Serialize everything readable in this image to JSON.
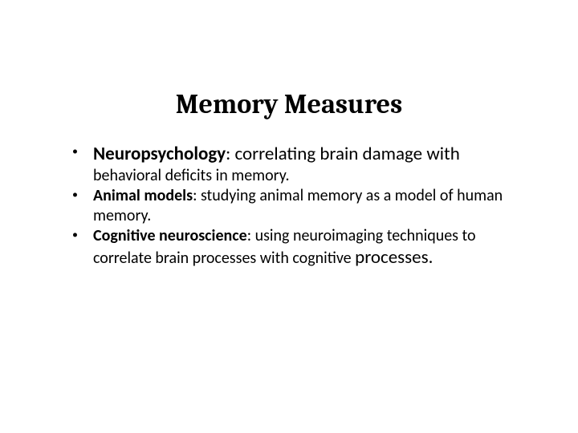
{
  "slide": {
    "title": "Memory Measures",
    "background_color": "#ffffff",
    "text_color": "#000000",
    "title_font": "Cambria, Georgia, serif",
    "body_font": "Calibri, Segoe UI, Arial, sans-serif",
    "title_fontsize": 34,
    "body_fontsize_small": 20,
    "body_fontsize_large": 23,
    "bullet_char": "•",
    "items": [
      {
        "lead": "Neuropsychology",
        "lead_suffix": ": correlating brain damage with",
        "body": " behavioral deficits in memory."
      },
      {
        "lead": "Animal models",
        "lead_suffix": ":",
        "body": " studying animal memory as a model of human memory."
      },
      {
        "lead": "Cognitive neuroscience",
        "lead_suffix": ":",
        "body": " using neuroimaging techniques to correlate brain processes with cognitive ",
        "tail": "processes."
      }
    ]
  }
}
